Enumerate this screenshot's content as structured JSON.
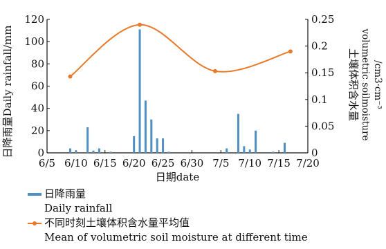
{
  "chart_data": {
    "type": "bar+line",
    "x_dates": [
      "6/5",
      "6/10",
      "6/15",
      "6/20",
      "6/25",
      "6/30",
      "7/5",
      "7/10",
      "7/15",
      "7/20"
    ],
    "xlabel": "日期date",
    "left_axis": {
      "label": "日降雨量Daily rainfall/mm",
      "ticks": [
        "0",
        "20",
        "40",
        "60",
        "80",
        "100",
        "120"
      ],
      "ylim": [
        0,
        120
      ]
    },
    "right_axis": {
      "label_lines": [
        "土壤体积含水量",
        "volumetric soilmoisture",
        "/cm3·cm⁻³"
      ],
      "ticks": [
        "0",
        "0.05",
        "0.1",
        "0.15",
        "0.2",
        "0.25"
      ],
      "ylim": [
        0,
        0.25
      ]
    },
    "series": [
      {
        "name": "日降雨量 Daily rainfall",
        "type": "bar",
        "axis": "left",
        "color": "#4f8fc4",
        "points": [
          {
            "date": "6/9",
            "value": 4
          },
          {
            "date": "6/10",
            "value": 2
          },
          {
            "date": "6/12",
            "value": 23
          },
          {
            "date": "6/13",
            "value": 2
          },
          {
            "date": "6/14",
            "value": 4
          },
          {
            "date": "6/16",
            "value": 1
          },
          {
            "date": "6/20",
            "value": 15
          },
          {
            "date": "6/21",
            "value": 111
          },
          {
            "date": "6/22",
            "value": 47
          },
          {
            "date": "6/23",
            "value": 30
          },
          {
            "date": "6/24",
            "value": 13
          },
          {
            "date": "6/25",
            "value": 13
          },
          {
            "date": "6/26",
            "value": 1
          },
          {
            "date": "7/6",
            "value": 4
          },
          {
            "date": "7/8",
            "value": 35
          },
          {
            "date": "7/9",
            "value": 6
          },
          {
            "date": "7/10",
            "value": 3
          },
          {
            "date": "7/11",
            "value": 20
          },
          {
            "date": "7/14",
            "value": 1
          },
          {
            "date": "7/16",
            "value": 9
          }
        ]
      },
      {
        "name": "不同时刻土壤体积含水量平均值 Mean of volumetric soil moisture at different time",
        "type": "line",
        "axis": "right",
        "color": "#e8792a",
        "points": [
          {
            "date": "6/9",
            "value": 0.143
          },
          {
            "date": "6/21",
            "value": 0.24
          },
          {
            "date": "7/4",
            "value": 0.153
          },
          {
            "date": "7/17",
            "value": 0.19
          }
        ]
      }
    ]
  },
  "legend": {
    "bar_label_cn": "日降雨量",
    "bar_label_en": "Daily rainfall",
    "line_label_cn": "不同时刻土壤体积含水量平均值",
    "line_label_en": "Mean of volumetric soil moisture at different time"
  }
}
